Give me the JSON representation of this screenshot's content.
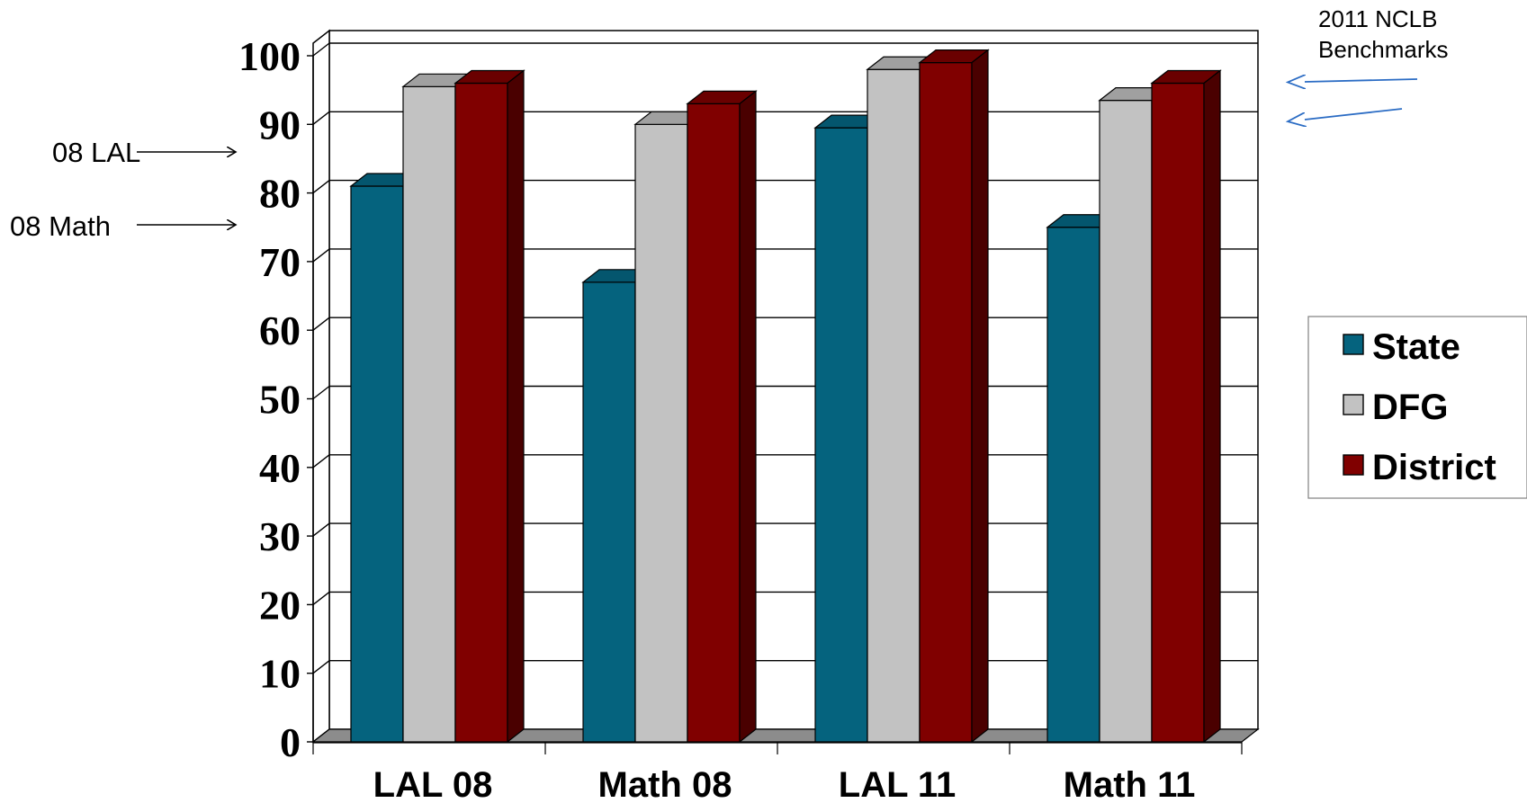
{
  "chart_data": {
    "type": "bar",
    "categories": [
      "LAL 08",
      "Math 08",
      "LAL 11",
      "Math 11"
    ],
    "series": [
      {
        "name": "State",
        "values": [
          81,
          67,
          89.5,
          75
        ],
        "color": "#05637E",
        "side_color": "#023E50",
        "top_color": "#04566E"
      },
      {
        "name": "DFG",
        "values": [
          95.5,
          90,
          98,
          93.5
        ],
        "color": "#C2C2C2",
        "side_color": "#8A8A8A",
        "top_color": "#A0A0A0"
      },
      {
        "name": "District",
        "values": [
          96,
          93,
          99,
          96
        ],
        "color": "#800000",
        "side_color": "#4A0000",
        "top_color": "#6A0000"
      }
    ],
    "y_ticks": [
      "0",
      "10",
      "20",
      "30",
      "40",
      "50",
      "60",
      "70",
      "80",
      "90",
      "100"
    ],
    "ylim": [
      0,
      100
    ],
    "grid": true,
    "legend_position": "right",
    "annotations": {
      "lal_benchmark_label": "08 LAL",
      "lal_benchmark_value": 80,
      "math_benchmark_label": "08 Math",
      "math_benchmark_value": 70,
      "nclb_line1": "2011 NCLB",
      "nclb_line2": "Benchmarks"
    }
  }
}
